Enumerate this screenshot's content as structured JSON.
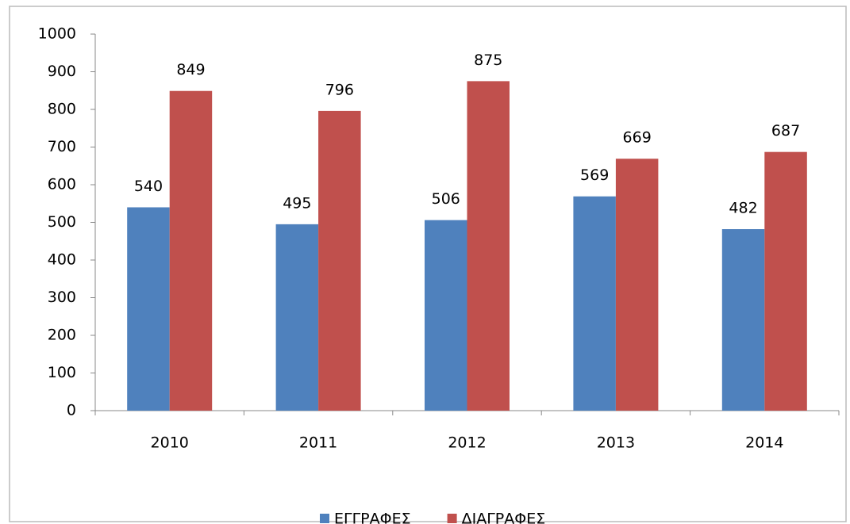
{
  "chart_data": {
    "type": "bar",
    "categories": [
      "2010",
      "2011",
      "2012",
      "2013",
      "2014"
    ],
    "series": [
      {
        "name": "ΕΓΓΡΑΦΕΣ",
        "color": "#4f81bd",
        "values": [
          540,
          495,
          506,
          569,
          482
        ]
      },
      {
        "name": "ΔΙΑΓΡΑΦΕΣ",
        "color": "#c0504d",
        "values": [
          849,
          796,
          875,
          669,
          687
        ]
      }
    ],
    "ylim": [
      0,
      1000
    ],
    "yticks": [
      0,
      100,
      200,
      300,
      400,
      500,
      600,
      700,
      800,
      900,
      1000
    ],
    "grid": false,
    "legend": "bottom",
    "data_labels": true
  }
}
